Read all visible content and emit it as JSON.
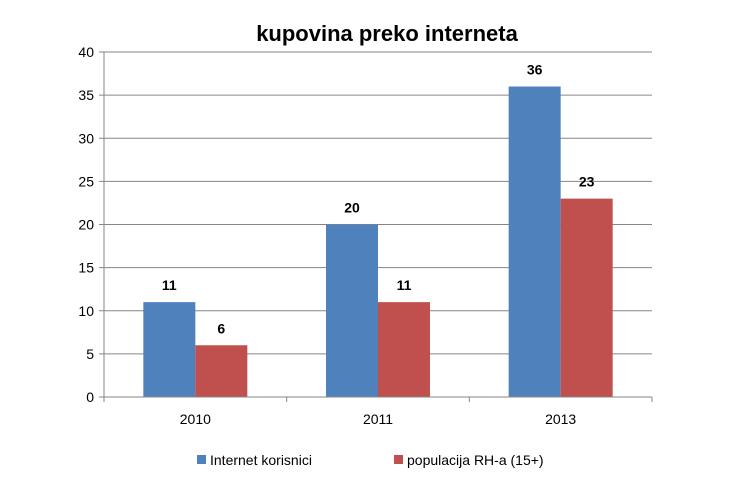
{
  "chart_data": {
    "type": "bar",
    "title": "kupovina preko interneta",
    "categories": [
      "2010",
      "2011",
      "2013"
    ],
    "series": [
      {
        "name": "Internet korisnici",
        "values": [
          11,
          20,
          36
        ],
        "color": "#4F81BD"
      },
      {
        "name": "populacija RH-a (15+)",
        "values": [
          6,
          11,
          23
        ],
        "color": "#C0504D"
      }
    ],
    "ylim": [
      0,
      40
    ],
    "yticks": [
      "0",
      "5",
      "10",
      "15",
      "20",
      "25",
      "30",
      "35",
      "40"
    ],
    "grid": true,
    "legend": "bottom",
    "data_labels": true
  }
}
